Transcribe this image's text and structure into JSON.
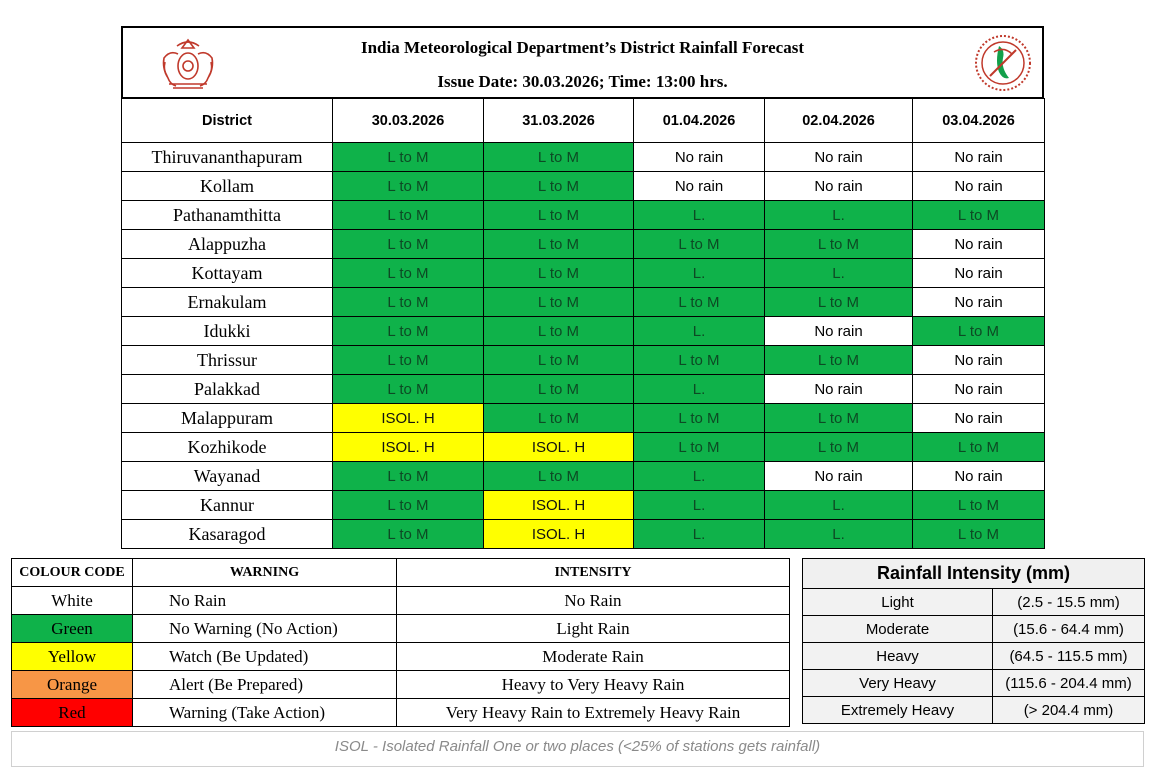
{
  "header": {
    "title": "India Meteorological Department’s District Rainfall Forecast",
    "issue": "Issue Date: 30.03.2026; Time: 13:00 hrs.",
    "left_logo": "kerala-emblem-icon",
    "right_logo": "imd-logo-icon"
  },
  "forecast": {
    "district_header": "District",
    "dates": [
      "30.03.2026",
      "31.03.2026",
      "01.04.2026",
      "02.04.2026",
      "03.04.2026"
    ],
    "rows": [
      {
        "district": "Thiruvananthapuram",
        "cells": [
          {
            "t": "L to M",
            "c": "green"
          },
          {
            "t": "L to M",
            "c": "green"
          },
          {
            "t": "No rain",
            "c": "white"
          },
          {
            "t": "No rain",
            "c": "white"
          },
          {
            "t": "No rain",
            "c": "white"
          }
        ]
      },
      {
        "district": "Kollam",
        "cells": [
          {
            "t": "L to M",
            "c": "green"
          },
          {
            "t": "L to M",
            "c": "green"
          },
          {
            "t": "No rain",
            "c": "white"
          },
          {
            "t": "No rain",
            "c": "white"
          },
          {
            "t": "No rain",
            "c": "white"
          }
        ]
      },
      {
        "district": "Pathanamthitta",
        "cells": [
          {
            "t": "L to M",
            "c": "green"
          },
          {
            "t": "L to M",
            "c": "green"
          },
          {
            "t": "L.",
            "c": "green"
          },
          {
            "t": "L.",
            "c": "green"
          },
          {
            "t": "L to M",
            "c": "green"
          }
        ]
      },
      {
        "district": "Alappuzha",
        "cells": [
          {
            "t": "L to M",
            "c": "green"
          },
          {
            "t": "L to M",
            "c": "green"
          },
          {
            "t": "L to M",
            "c": "green"
          },
          {
            "t": "L to M",
            "c": "green"
          },
          {
            "t": "No rain",
            "c": "white"
          }
        ]
      },
      {
        "district": "Kottayam",
        "cells": [
          {
            "t": "L to M",
            "c": "green"
          },
          {
            "t": "L to M",
            "c": "green"
          },
          {
            "t": "L.",
            "c": "green"
          },
          {
            "t": "L.",
            "c": "green"
          },
          {
            "t": "No rain",
            "c": "white"
          }
        ]
      },
      {
        "district": "Ernakulam",
        "cells": [
          {
            "t": "L to M",
            "c": "green"
          },
          {
            "t": "L to M",
            "c": "green"
          },
          {
            "t": "L to M",
            "c": "green"
          },
          {
            "t": "L to M",
            "c": "green"
          },
          {
            "t": "No rain",
            "c": "white"
          }
        ]
      },
      {
        "district": "Idukki",
        "cells": [
          {
            "t": "L to M",
            "c": "green"
          },
          {
            "t": "L to M",
            "c": "green"
          },
          {
            "t": "L.",
            "c": "green"
          },
          {
            "t": "No rain",
            "c": "white"
          },
          {
            "t": "L to M",
            "c": "green"
          }
        ]
      },
      {
        "district": "Thrissur",
        "cells": [
          {
            "t": "L to M",
            "c": "green"
          },
          {
            "t": "L to M",
            "c": "green"
          },
          {
            "t": "L to M",
            "c": "green"
          },
          {
            "t": "L to M",
            "c": "green"
          },
          {
            "t": "No rain",
            "c": "white"
          }
        ]
      },
      {
        "district": "Palakkad",
        "cells": [
          {
            "t": "L to M",
            "c": "green"
          },
          {
            "t": "L to M",
            "c": "green"
          },
          {
            "t": "L.",
            "c": "green"
          },
          {
            "t": "No rain",
            "c": "white"
          },
          {
            "t": "No rain",
            "c": "white"
          }
        ]
      },
      {
        "district": "Malappuram",
        "cells": [
          {
            "t": "ISOL. H",
            "c": "yellow"
          },
          {
            "t": "L to M",
            "c": "green"
          },
          {
            "t": "L to M",
            "c": "green"
          },
          {
            "t": "L to M",
            "c": "green"
          },
          {
            "t": "No rain",
            "c": "white"
          }
        ]
      },
      {
        "district": "Kozhikode",
        "cells": [
          {
            "t": "ISOL. H",
            "c": "yellow"
          },
          {
            "t": "ISOL. H",
            "c": "yellow"
          },
          {
            "t": "L to M",
            "c": "green"
          },
          {
            "t": "L to M",
            "c": "green"
          },
          {
            "t": "L to M",
            "c": "green"
          }
        ]
      },
      {
        "district": "Wayanad",
        "cells": [
          {
            "t": "L to M",
            "c": "green"
          },
          {
            "t": "L to M",
            "c": "green"
          },
          {
            "t": "L.",
            "c": "green"
          },
          {
            "t": "No rain",
            "c": "white"
          },
          {
            "t": "No rain",
            "c": "white"
          }
        ]
      },
      {
        "district": "Kannur",
        "cells": [
          {
            "t": "L to M",
            "c": "green"
          },
          {
            "t": "ISOL. H",
            "c": "yellow"
          },
          {
            "t": "L.",
            "c": "green"
          },
          {
            "t": "L.",
            "c": "green"
          },
          {
            "t": "L to M",
            "c": "green"
          }
        ]
      },
      {
        "district": "Kasaragod",
        "cells": [
          {
            "t": "L to M",
            "c": "green"
          },
          {
            "t": "ISOL. H",
            "c": "yellow"
          },
          {
            "t": "L.",
            "c": "green"
          },
          {
            "t": "L.",
            "c": "green"
          },
          {
            "t": "L to M",
            "c": "green"
          }
        ]
      }
    ]
  },
  "colour_legend": {
    "headers": [
      "COLOUR CODE",
      "WARNING",
      "INTENSITY"
    ],
    "rows": [
      {
        "colour": "White",
        "hex": "#ffffff",
        "text_hex": "#000000",
        "warning": "No Rain",
        "intensity": "No Rain"
      },
      {
        "colour": "Green",
        "hex": "#0fb24a",
        "text_hex": "#000000",
        "warning": "No Warning (No Action)",
        "intensity": "Light Rain"
      },
      {
        "colour": "Yellow",
        "hex": "#ffff00",
        "text_hex": "#000000",
        "warning": "Watch (Be Updated)",
        "intensity": "Moderate Rain"
      },
      {
        "colour": "Orange",
        "hex": "#f79646",
        "text_hex": "#000000",
        "warning": "Alert (Be Prepared)",
        "intensity": "Heavy to Very Heavy Rain"
      },
      {
        "colour": "Red",
        "hex": "#ff0000",
        "text_hex": "#000000",
        "warning": "Warning (Take Action)",
        "intensity": "Very Heavy Rain to Extremely Heavy Rain"
      }
    ]
  },
  "rainfall_intensity": {
    "title": "Rainfall Intensity (mm)",
    "rows": [
      {
        "label": "Light",
        "range": "(2.5 - 15.5 mm)"
      },
      {
        "label": "Moderate",
        "range": "(15.6 - 64.4 mm)"
      },
      {
        "label": "Heavy",
        "range": "(64.5 - 115.5 mm)"
      },
      {
        "label": "Very Heavy",
        "range": "(115.6 - 204.4 mm)"
      },
      {
        "label": "Extremely Heavy",
        "range": "(> 204.4 mm)"
      }
    ]
  },
  "footnote": "ISOL - Isolated Rainfall One or two places (<25% of stations gets rainfall)",
  "colors": {
    "green": "#0fb24a",
    "yellow": "#ffff00",
    "white": "#ffffff"
  }
}
